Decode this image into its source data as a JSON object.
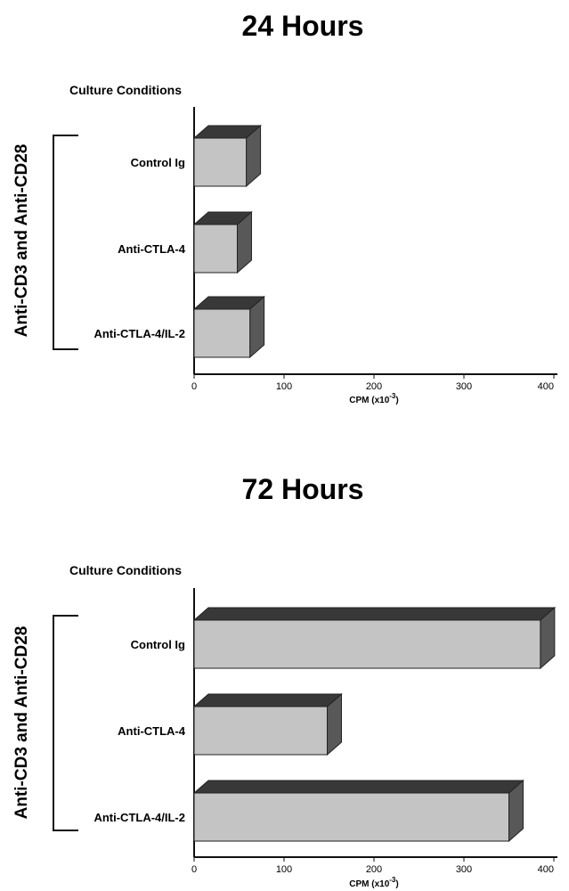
{
  "chart_data": [
    {
      "type": "bar",
      "orientation": "horizontal",
      "style": "3d",
      "title": "24  Hours",
      "subtitle": "Culture Conditions",
      "group_label": "Anti-CD3 and Anti-CD28",
      "categories": [
        "Control Ig",
        "Anti-CTLA-4",
        "Anti-CTLA-4/IL-2"
      ],
      "values": [
        58,
        48,
        62
      ],
      "xlabel": "CPM (x10",
      "xlabel_sup": "-3",
      "xlabel_end": ")",
      "xlim": [
        0,
        400
      ],
      "xticks": [
        "0",
        "100",
        "200",
        "300",
        "400"
      ],
      "grid": false,
      "colors": {
        "front": "#c4c4c4",
        "top": "#383838",
        "side": "#585858"
      }
    },
    {
      "type": "bar",
      "orientation": "horizontal",
      "style": "3d",
      "title": "72  Hours",
      "subtitle": "Culture Conditions",
      "group_label": "Anti-CD3 and Anti-CD28",
      "categories": [
        "Control Ig",
        "Anti-CTLA-4",
        "Anti-CTLA-4/IL-2"
      ],
      "values": [
        385,
        148,
        350
      ],
      "xlabel": "CPM (x10",
      "xlabel_sup": "-3",
      "xlabel_end": ")",
      "xlim": [
        0,
        400
      ],
      "xticks": [
        "0",
        "100",
        "200",
        "300",
        "400"
      ],
      "grid": false,
      "colors": {
        "front": "#c4c4c4",
        "top": "#383838",
        "side": "#585858"
      }
    }
  ]
}
